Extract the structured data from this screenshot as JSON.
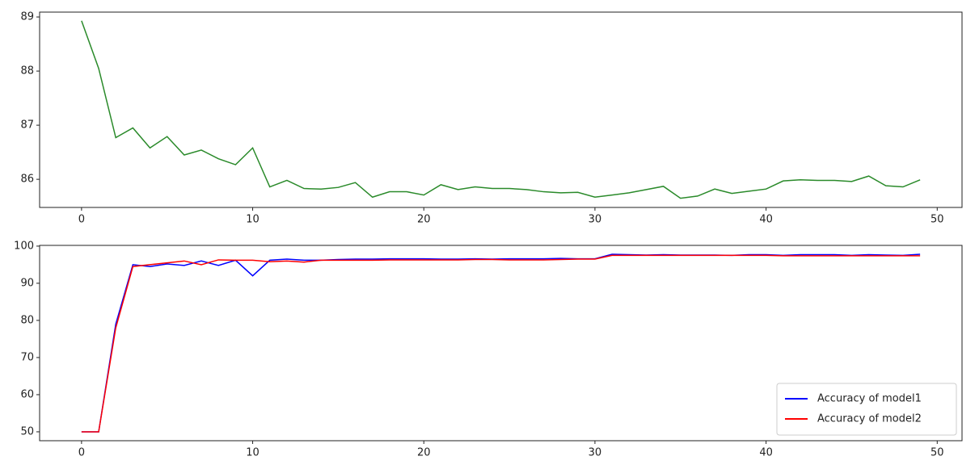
{
  "chart_data": [
    {
      "type": "line",
      "x": [
        0,
        1,
        2,
        3,
        4,
        5,
        6,
        7,
        8,
        9,
        10,
        11,
        12,
        13,
        14,
        15,
        16,
        17,
        18,
        19,
        20,
        21,
        22,
        23,
        24,
        25,
        26,
        27,
        28,
        29,
        30,
        31,
        32,
        33,
        34,
        35,
        36,
        37,
        38,
        39,
        40,
        41,
        42,
        43,
        44,
        45,
        46,
        47,
        48,
        49
      ],
      "series": [
        {
          "color": "#2a8a2a",
          "values": [
            88.93,
            88.05,
            86.77,
            86.95,
            86.58,
            86.79,
            86.45,
            86.54,
            86.38,
            86.27,
            86.58,
            85.86,
            85.98,
            85.83,
            85.82,
            85.85,
            85.94,
            85.67,
            85.77,
            85.77,
            85.71,
            85.9,
            85.81,
            85.86,
            85.83,
            85.83,
            85.81,
            85.77,
            85.75,
            85.76,
            85.67,
            85.71,
            85.75,
            85.81,
            85.87,
            85.65,
            85.69,
            85.82,
            85.74,
            85.78,
            85.82,
            85.97,
            85.99,
            85.98,
            85.98,
            85.96,
            86.06,
            85.88,
            85.86,
            85.99
          ]
        }
      ],
      "xlim": [
        -2.45,
        51.45
      ],
      "xticks": [
        0,
        10,
        20,
        30,
        40,
        50
      ],
      "ylim": [
        85.48,
        89.09
      ],
      "yticks": [
        86,
        87,
        88,
        89
      ]
    },
    {
      "type": "line",
      "x": [
        0,
        1,
        2,
        3,
        4,
        5,
        6,
        7,
        8,
        9,
        10,
        11,
        12,
        13,
        14,
        15,
        16,
        17,
        18,
        19,
        20,
        21,
        22,
        23,
        24,
        25,
        26,
        27,
        28,
        29,
        30,
        31,
        32,
        33,
        34,
        35,
        36,
        37,
        38,
        39,
        40,
        41,
        42,
        43,
        44,
        45,
        46,
        47,
        48,
        49
      ],
      "series": [
        {
          "name": "Accuracy of model1",
          "color": "#0000ff",
          "values": [
            50,
            50,
            79,
            95,
            94.5,
            95.2,
            94.8,
            96,
            94.8,
            96.2,
            92,
            96.2,
            96.5,
            96.2,
            96.2,
            96.4,
            96.5,
            96.5,
            96.6,
            96.6,
            96.6,
            96.5,
            96.5,
            96.6,
            96.5,
            96.6,
            96.6,
            96.6,
            96.7,
            96.6,
            96.6,
            97.8,
            97.7,
            97.6,
            97.7,
            97.6,
            97.6,
            97.6,
            97.5,
            97.7,
            97.7,
            97.5,
            97.7,
            97.7,
            97.7,
            97.5,
            97.7,
            97.6,
            97.5,
            97.8
          ]
        },
        {
          "name": "Accuracy of model2",
          "color": "#ff0000",
          "values": [
            50,
            50,
            78,
            94.5,
            95,
            95.5,
            96,
            95,
            96.3,
            96.2,
            96.2,
            95.8,
            96,
            95.7,
            96.2,
            96.2,
            96.2,
            96.2,
            96.3,
            96.3,
            96.3,
            96.3,
            96.3,
            96.4,
            96.4,
            96.3,
            96.3,
            96.3,
            96.4,
            96.5,
            96.5,
            97.5,
            97.5,
            97.5,
            97.5,
            97.5,
            97.5,
            97.5,
            97.5,
            97.5,
            97.5,
            97.4,
            97.4,
            97.4,
            97.4,
            97.4,
            97.4,
            97.4,
            97.4,
            97.4
          ]
        }
      ],
      "xlim": [
        -2.45,
        51.45
      ],
      "xticks": [
        0,
        10,
        20,
        30,
        40,
        50
      ],
      "ylim": [
        47.6,
        100.2
      ],
      "yticks": [
        50,
        60,
        70,
        80,
        90,
        100
      ],
      "legend": "lower right"
    }
  ]
}
